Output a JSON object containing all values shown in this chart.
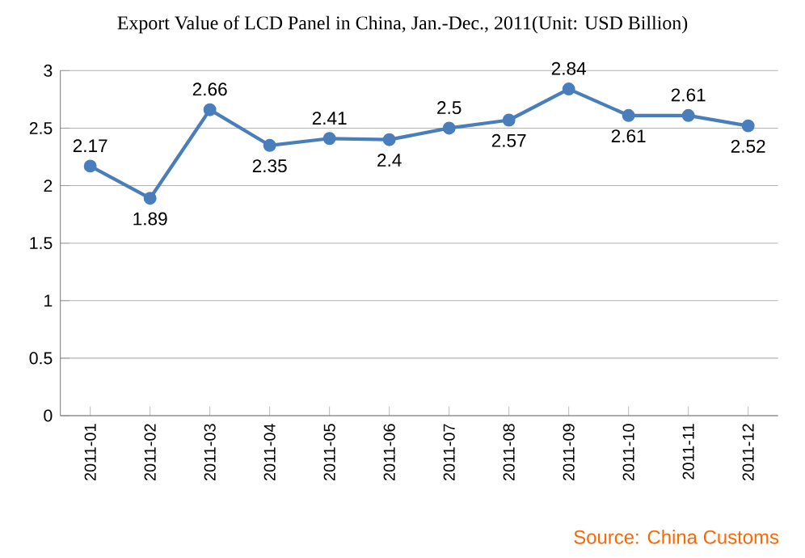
{
  "chart_data": {
    "type": "line",
    "title": "Export Value of LCD Panel in China, Jan.-Dec., 2011(Unit: USD Billion)",
    "categories": [
      "2011-01",
      "2011-02",
      "2011-03",
      "2011-04",
      "2011-05",
      "2011-06",
      "2011-07",
      "2011-08",
      "2011-09",
      "2011-10",
      "2011-11",
      "2011-12"
    ],
    "values": [
      2.17,
      1.89,
      2.66,
      2.35,
      2.41,
      2.4,
      2.5,
      2.57,
      2.84,
      2.61,
      2.61,
      2.52
    ],
    "color": "#4a7ebb",
    "marker": "circle",
    "data_labels": true,
    "grid": "y",
    "ylim": [
      0,
      3
    ],
    "yticks": [
      0,
      0.5,
      1,
      1.5,
      2,
      2.5,
      3
    ],
    "annotations": [
      "Source: China Customs"
    ]
  }
}
